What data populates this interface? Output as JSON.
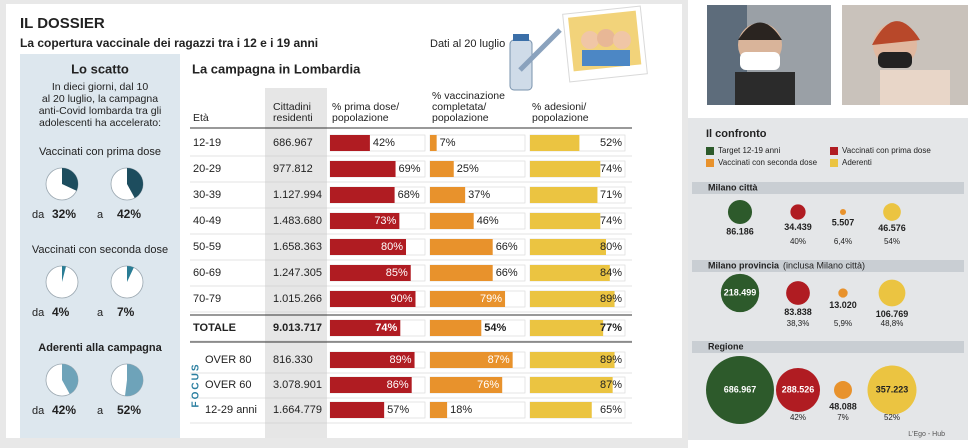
{
  "header": {
    "title": "IL DOSSIER",
    "subtitle": "La copertura vaccinale dei ragazzi tra i 12 e i 19 anni",
    "date": "Dati al 20 luglio"
  },
  "scatto": {
    "title": "Lo scatto",
    "intro": [
      "In dieci giorni, dal 10",
      "al 20 luglio, la campagna",
      "anti-Covid lombarda tra gli",
      "adolescenti ha accelerato:"
    ],
    "from_word": "da",
    "to_word": "a",
    "groups": [
      {
        "label": "Vaccinati con prima dose",
        "color": "#1d4d5e",
        "values": [
          32,
          42
        ],
        "value_labels": [
          "32%",
          "42%"
        ]
      },
      {
        "label": "Vaccinati con seconda dose",
        "color": "#2a7d95",
        "values": [
          4,
          7
        ],
        "value_labels": [
          "4%",
          "7%"
        ]
      },
      {
        "label": "Aderenti alla campagna",
        "color": "#6ea3b9",
        "values": [
          42,
          52
        ],
        "value_labels": [
          "42%",
          "52%"
        ]
      }
    ]
  },
  "table": {
    "title": "La campagna in Lombardia",
    "columns": [
      [
        "Età"
      ],
      [
        "Cittadini",
        "residenti"
      ],
      [
        "% prima dose/",
        "popolazione"
      ],
      [
        "% vaccinazione",
        "completata/",
        "popolazione"
      ],
      [
        "% adesioni/",
        "popolazione"
      ]
    ],
    "colors": [
      "#b01c22",
      "#e8922c",
      "#ebc441"
    ],
    "rows": [
      {
        "age": "12-19",
        "residents": "686.967",
        "values": [
          42,
          7,
          52
        ],
        "value_labels": [
          "42%",
          "7%",
          "52%"
        ]
      },
      {
        "age": "20-29",
        "residents": "977.812",
        "values": [
          69,
          25,
          74
        ],
        "value_labels": [
          "69%",
          "25%",
          "74%"
        ]
      },
      {
        "age": "30-39",
        "residents": "1.127.994",
        "values": [
          68,
          37,
          71
        ],
        "value_labels": [
          "68%",
          "37%",
          "71%"
        ]
      },
      {
        "age": "40-49",
        "residents": "1.483.680",
        "values": [
          73,
          46,
          74
        ],
        "value_labels": [
          "73%",
          "46%",
          "74%"
        ]
      },
      {
        "age": "50-59",
        "residents": "1.658.363",
        "values": [
          80,
          66,
          80
        ],
        "value_labels": [
          "80%",
          "66%",
          "80%"
        ]
      },
      {
        "age": "60-69",
        "residents": "1.247.305",
        "values": [
          85,
          66,
          84
        ],
        "value_labels": [
          "85%",
          "66%",
          "84%"
        ]
      },
      {
        "age": "70-79",
        "residents": "1.015.266",
        "values": [
          90,
          79,
          89
        ],
        "value_labels": [
          "90%",
          "79%",
          "89%"
        ]
      }
    ],
    "total": {
      "age": "TOTALE",
      "residents": "9.013.717",
      "values": [
        74,
        54,
        77
      ],
      "value_labels": [
        "74%",
        "54%",
        "77%"
      ]
    },
    "focus_label": "FOCUS",
    "focus_rows": [
      {
        "age": "OVER 80",
        "residents": "816.330",
        "values": [
          89,
          87,
          89
        ],
        "value_labels": [
          "89%",
          "87%",
          "89%"
        ]
      },
      {
        "age": "OVER 60",
        "residents": "3.078.901",
        "values": [
          86,
          76,
          87
        ],
        "value_labels": [
          "86%",
          "76%",
          "87%"
        ]
      },
      {
        "age": "12-29 anni",
        "residents": "1.664.779",
        "values": [
          57,
          18,
          65
        ],
        "value_labels": [
          "57%",
          "18%",
          "65%"
        ]
      }
    ]
  },
  "confronto": {
    "title": "Il confronto",
    "legend": [
      {
        "label": "Target 12-19 anni",
        "color": "#2d5a2b"
      },
      {
        "label": "Vaccinati con prima dose",
        "color": "#b01c22"
      },
      {
        "label": "Vaccinati con seconda dose",
        "color": "#e8922c"
      },
      {
        "label": "Aderenti",
        "color": "#ebc441"
      }
    ],
    "sections": [
      {
        "title": "Milano città",
        "items": [
          {
            "value": 86186,
            "label": "86.186"
          },
          {
            "value": 34439,
            "label": "34.439",
            "pct": "40%"
          },
          {
            "value": 5507,
            "label": "5.507",
            "pct": "6,4%"
          },
          {
            "value": 46576,
            "label": "46.576",
            "pct": "54%"
          }
        ]
      },
      {
        "title": "Milano provincia",
        "note": "(inclusa Milano città)",
        "items": [
          {
            "value": 218499,
            "label": "218.499"
          },
          {
            "value": 83838,
            "label": "83.838",
            "pct": "38,3%"
          },
          {
            "value": 13020,
            "label": "13.020",
            "pct": "5,9%"
          },
          {
            "value": 106769,
            "label": "106.769",
            "pct": "48,8%"
          }
        ]
      },
      {
        "title": "Regione",
        "items": [
          {
            "value": 686967,
            "label": "686.967"
          },
          {
            "value": 288526,
            "label": "288.526",
            "pct": "42%"
          },
          {
            "value": 48088,
            "label": "48.088",
            "pct": "7%"
          },
          {
            "value": 357223,
            "label": "357.223",
            "pct": "52%"
          }
        ]
      }
    ],
    "credit": "L'Ego - Hub"
  }
}
